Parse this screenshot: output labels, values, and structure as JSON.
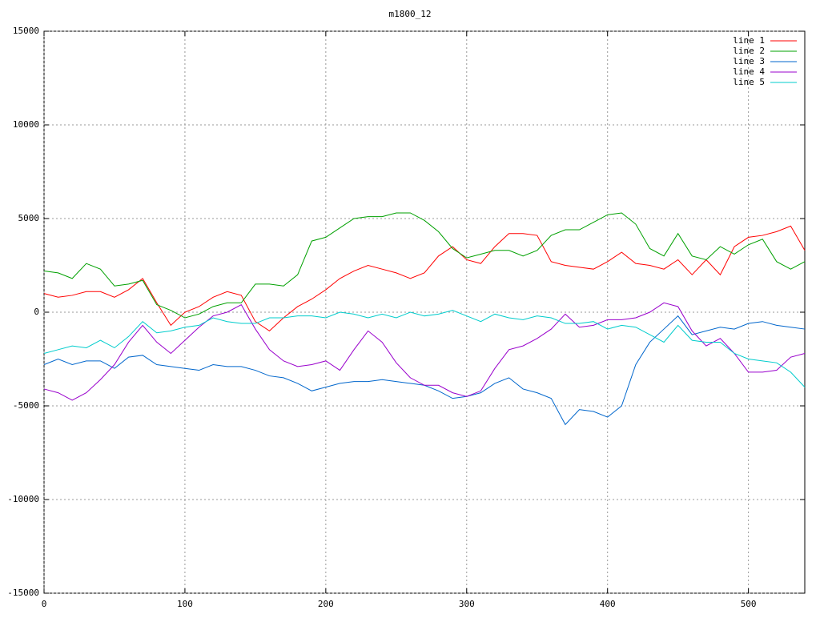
{
  "chart_data": {
    "type": "line",
    "title": "m1800_12",
    "x": [
      0,
      10,
      20,
      30,
      40,
      50,
      60,
      70,
      80,
      90,
      100,
      110,
      120,
      130,
      140,
      150,
      160,
      170,
      180,
      190,
      200,
      210,
      220,
      230,
      240,
      250,
      260,
      270,
      280,
      290,
      300,
      310,
      320,
      330,
      340,
      350,
      360,
      370,
      380,
      390,
      400,
      410,
      420,
      430,
      440,
      450,
      460,
      470,
      480,
      490,
      500,
      510,
      520,
      530,
      540
    ],
    "series": [
      {
        "name": "line 1",
        "color": "#ff0000",
        "values": [
          1000,
          800,
          900,
          1100,
          1100,
          800,
          1200,
          1800,
          500,
          -700,
          0,
          300,
          800,
          1100,
          900,
          -500,
          -1000,
          -300,
          300,
          700,
          1200,
          1800,
          2200,
          2500,
          2300,
          2100,
          1800,
          2100,
          3000,
          3500,
          2800,
          2600,
          3500,
          4200,
          4200,
          4100,
          2700,
          2500,
          2400,
          2300,
          2700,
          3200,
          2600,
          2500,
          2300,
          2800,
          2000,
          2800,
          2000,
          3500,
          4000,
          4100,
          4300,
          4600,
          3300
        ]
      },
      {
        "name": "line 2",
        "color": "#00a000",
        "values": [
          2200,
          2100,
          1800,
          2600,
          2300,
          1400,
          1500,
          1700,
          400,
          100,
          -300,
          -100,
          300,
          500,
          500,
          1500,
          1500,
          1400,
          2000,
          3800,
          4000,
          4500,
          5000,
          5100,
          5100,
          5300,
          5300,
          4900,
          4300,
          3400,
          2900,
          3100,
          3300,
          3300,
          3000,
          3300,
          4100,
          4400,
          4400,
          4800,
          5200,
          5300,
          4700,
          3400,
          3000,
          4200,
          3000,
          2800,
          3500,
          3100,
          3600,
          3900,
          2700,
          2300,
          2700
        ]
      },
      {
        "name": "line 3",
        "color": "#0066cc",
        "values": [
          -2800,
          -2500,
          -2800,
          -2600,
          -2600,
          -3000,
          -2400,
          -2300,
          -2800,
          -2900,
          -3000,
          -3100,
          -2800,
          -2900,
          -2900,
          -3100,
          -3400,
          -3500,
          -3800,
          -4200,
          -4000,
          -3800,
          -3700,
          -3700,
          -3600,
          -3700,
          -3800,
          -3900,
          -4200,
          -4600,
          -4500,
          -4300,
          -3800,
          -3500,
          -4100,
          -4300,
          -4600,
          -6000,
          -5200,
          -5300,
          -5600,
          -5000,
          -2800,
          -1600,
          -900,
          -200,
          -1200,
          -1000,
          -800,
          -900,
          -600,
          -500,
          -700,
          -800,
          -900
        ]
      },
      {
        "name": "line 4",
        "color": "#9900cc",
        "values": [
          -4100,
          -4300,
          -4700,
          -4300,
          -3600,
          -2800,
          -1600,
          -700,
          -1600,
          -2200,
          -1500,
          -800,
          -200,
          0,
          400,
          -900,
          -2000,
          -2600,
          -2900,
          -2800,
          -2600,
          -3100,
          -2000,
          -1000,
          -1600,
          -2700,
          -3500,
          -3900,
          -3900,
          -4300,
          -4500,
          -4200,
          -3000,
          -2000,
          -1800,
          -1400,
          -900,
          -100,
          -800,
          -700,
          -400,
          -400,
          -300,
          0,
          500,
          300,
          -1000,
          -1800,
          -1400,
          -2200,
          -3200,
          -3200,
          -3100,
          -2400,
          -2200
        ]
      },
      {
        "name": "line 5",
        "color": "#00cccc",
        "values": [
          -2200,
          -2000,
          -1800,
          -1900,
          -1500,
          -1900,
          -1300,
          -500,
          -1100,
          -1000,
          -800,
          -700,
          -300,
          -500,
          -600,
          -600,
          -300,
          -300,
          -200,
          -200,
          -300,
          0,
          -100,
          -300,
          -100,
          -300,
          0,
          -200,
          -100,
          100,
          -200,
          -500,
          -100,
          -300,
          -400,
          -200,
          -300,
          -600,
          -600,
          -500,
          -900,
          -700,
          -800,
          -1200,
          -1600,
          -700,
          -1500,
          -1600,
          -1600,
          -2200,
          -2500,
          -2600,
          -2700,
          -3200,
          -4000
        ]
      }
    ],
    "xlim": [
      0,
      540
    ],
    "ylim": [
      -15000,
      15000
    ],
    "xticks": [
      0,
      100,
      200,
      300,
      400,
      500
    ],
    "yticks": [
      -15000,
      -10000,
      -5000,
      0,
      5000,
      10000,
      15000
    ],
    "grid": true,
    "legend": "top-right"
  }
}
